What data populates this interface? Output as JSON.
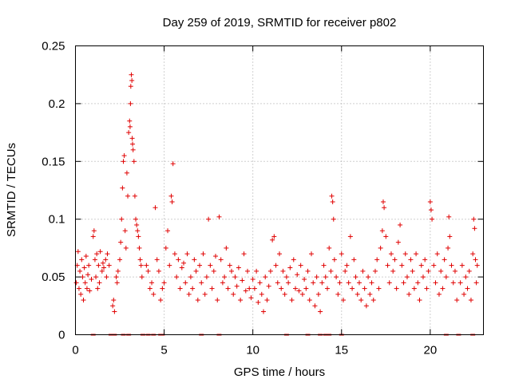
{
  "chart_data": {
    "type": "scatter",
    "title": "Day 259 of 2019, SRMTID for receiver p802",
    "xlabel": "GPS time / hours",
    "ylabel": "SRMTID / TECUs",
    "xlim": [
      0,
      23
    ],
    "ylim": [
      0,
      0.25
    ],
    "xticks": [
      0,
      5,
      10,
      15,
      20
    ],
    "yticks": [
      0,
      0.05,
      0.1,
      0.15,
      0.2,
      0.25
    ],
    "xtick_labels": [
      "0",
      "5",
      "10",
      "15",
      "20"
    ],
    "ytick_labels": [
      "0",
      "0.05",
      "0.1",
      "0.15",
      "0.2",
      "0.25"
    ],
    "grid": true,
    "marker": "plus",
    "color": "#e00000",
    "series": [
      {
        "name": "SRMTID",
        "points": [
          [
            0.05,
            0.045
          ],
          [
            0.1,
            0.06
          ],
          [
            0.15,
            0.072
          ],
          [
            0.2,
            0.04
          ],
          [
            0.25,
            0.055
          ],
          [
            0.3,
            0.035
          ],
          [
            0.35,
            0.065
          ],
          [
            0.4,
            0.05
          ],
          [
            0.45,
            0.03
          ],
          [
            0.5,
            0.058
          ],
          [
            0.55,
            0.045
          ],
          [
            0.6,
            0.068
          ],
          [
            0.65,
            0.04
          ],
          [
            0.7,
            0.052
          ],
          [
            0.75,
            0.06
          ],
          [
            0.8,
            0.038
          ],
          [
            0.9,
            0.048
          ],
          [
            1.0,
            0.085
          ],
          [
            1.05,
            0.09
          ],
          [
            1.1,
            0.065
          ],
          [
            1.15,
            0.05
          ],
          [
            1.2,
            0.07
          ],
          [
            1.25,
            0.04
          ],
          [
            1.3,
            0.06
          ],
          [
            1.35,
            0.045
          ],
          [
            1.4,
            0.072
          ],
          [
            1.5,
            0.055
          ],
          [
            1.55,
            0.062
          ],
          [
            1.6,
            0.058
          ],
          [
            1.7,
            0.065
          ],
          [
            1.75,
            0.05
          ],
          [
            1.8,
            0.07
          ],
          [
            1.9,
            0.06
          ],
          [
            2.1,
            0.025
          ],
          [
            2.15,
            0.03
          ],
          [
            2.2,
            0.02
          ],
          [
            2.3,
            0.05
          ],
          [
            2.35,
            0.045
          ],
          [
            2.4,
            0.055
          ],
          [
            2.5,
            0.065
          ],
          [
            2.55,
            0.08
          ],
          [
            2.6,
            0.1
          ],
          [
            2.65,
            0.127
          ],
          [
            2.7,
            0.15
          ],
          [
            2.75,
            0.155
          ],
          [
            2.8,
            0.09
          ],
          [
            2.85,
            0.075
          ],
          [
            2.9,
            0.14
          ],
          [
            2.95,
            0.12
          ],
          [
            3.0,
            0.175
          ],
          [
            3.05,
            0.185
          ],
          [
            3.08,
            0.18
          ],
          [
            3.1,
            0.2
          ],
          [
            3.12,
            0.215
          ],
          [
            3.15,
            0.225
          ],
          [
            3.18,
            0.22
          ],
          [
            3.2,
            0.17
          ],
          [
            3.22,
            0.165
          ],
          [
            3.25,
            0.16
          ],
          [
            3.3,
            0.15
          ],
          [
            3.35,
            0.12
          ],
          [
            3.4,
            0.1
          ],
          [
            3.45,
            0.095
          ],
          [
            3.5,
            0.09
          ],
          [
            3.55,
            0.085
          ],
          [
            3.6,
            0.075
          ],
          [
            3.65,
            0.065
          ],
          [
            3.7,
            0.06
          ],
          [
            3.75,
            0.05
          ],
          [
            4.0,
            0.06
          ],
          [
            4.1,
            0.055
          ],
          [
            4.2,
            0.04
          ],
          [
            4.3,
            0.045
          ],
          [
            4.4,
            0.035
          ],
          [
            4.5,
            0.11
          ],
          [
            4.6,
            0.065
          ],
          [
            4.7,
            0.055
          ],
          [
            4.8,
            0.03
          ],
          [
            4.9,
            0.04
          ],
          [
            5.0,
            0.045
          ],
          [
            5.1,
            0.075
          ],
          [
            5.2,
            0.09
          ],
          [
            5.3,
            0.06
          ],
          [
            5.4,
            0.12
          ],
          [
            5.45,
            0.115
          ],
          [
            5.5,
            0.148
          ],
          [
            5.6,
            0.07
          ],
          [
            5.7,
            0.05
          ],
          [
            5.8,
            0.065
          ],
          [
            5.9,
            0.04
          ],
          [
            6.0,
            0.058
          ],
          [
            6.1,
            0.062
          ],
          [
            6.2,
            0.045
          ],
          [
            6.3,
            0.07
          ],
          [
            6.4,
            0.035
          ],
          [
            6.5,
            0.05
          ],
          [
            6.6,
            0.04
          ],
          [
            6.7,
            0.065
          ],
          [
            6.8,
            0.055
          ],
          [
            6.9,
            0.03
          ],
          [
            7.0,
            0.06
          ],
          [
            7.1,
            0.045
          ],
          [
            7.2,
            0.07
          ],
          [
            7.3,
            0.035
          ],
          [
            7.4,
            0.05
          ],
          [
            7.5,
            0.1
          ],
          [
            7.6,
            0.06
          ],
          [
            7.7,
            0.04
          ],
          [
            7.8,
            0.055
          ],
          [
            7.9,
            0.068
          ],
          [
            8.0,
            0.03
          ],
          [
            8.1,
            0.102
          ],
          [
            8.2,
            0.065
          ],
          [
            8.3,
            0.045
          ],
          [
            8.4,
            0.05
          ],
          [
            8.5,
            0.075
          ],
          [
            8.6,
            0.04
          ],
          [
            8.7,
            0.06
          ],
          [
            8.8,
            0.055
          ],
          [
            8.9,
            0.035
          ],
          [
            9.0,
            0.05
          ],
          [
            9.1,
            0.042
          ],
          [
            9.2,
            0.058
          ],
          [
            9.3,
            0.03
          ],
          [
            9.4,
            0.047
          ],
          [
            9.5,
            0.07
          ],
          [
            9.6,
            0.038
          ],
          [
            9.7,
            0.055
          ],
          [
            9.8,
            0.04
          ],
          [
            9.9,
            0.032
          ],
          [
            10.0,
            0.048
          ],
          [
            10.1,
            0.04
          ],
          [
            10.2,
            0.055
          ],
          [
            10.3,
            0.028
          ],
          [
            10.4,
            0.045
          ],
          [
            10.5,
            0.035
          ],
          [
            10.6,
            0.02
          ],
          [
            10.7,
            0.05
          ],
          [
            10.8,
            0.03
          ],
          [
            10.9,
            0.042
          ],
          [
            11.0,
            0.055
          ],
          [
            11.1,
            0.082
          ],
          [
            11.2,
            0.085
          ],
          [
            11.3,
            0.06
          ],
          [
            11.4,
            0.045
          ],
          [
            11.5,
            0.07
          ],
          [
            11.6,
            0.04
          ],
          [
            11.7,
            0.055
          ],
          [
            11.8,
            0.035
          ],
          [
            11.9,
            0.05
          ],
          [
            12.0,
            0.045
          ],
          [
            12.1,
            0.058
          ],
          [
            12.2,
            0.03
          ],
          [
            12.3,
            0.065
          ],
          [
            12.4,
            0.04
          ],
          [
            12.5,
            0.052
          ],
          [
            12.6,
            0.038
          ],
          [
            12.7,
            0.06
          ],
          [
            12.8,
            0.035
          ],
          [
            12.9,
            0.048
          ],
          [
            13.0,
            0.04
          ],
          [
            13.1,
            0.055
          ],
          [
            13.2,
            0.03
          ],
          [
            13.3,
            0.07
          ],
          [
            13.4,
            0.045
          ],
          [
            13.5,
            0.025
          ],
          [
            13.6,
            0.05
          ],
          [
            13.7,
            0.035
          ],
          [
            13.8,
            0.02
          ],
          [
            13.9,
            0.045
          ],
          [
            14.0,
            0.06
          ],
          [
            14.1,
            0.05
          ],
          [
            14.2,
            0.04
          ],
          [
            14.3,
            0.075
          ],
          [
            14.4,
            0.055
          ],
          [
            14.45,
            0.12
          ],
          [
            14.5,
            0.115
          ],
          [
            14.55,
            0.1
          ],
          [
            14.6,
            0.065
          ],
          [
            14.7,
            0.05
          ],
          [
            14.8,
            0.035
          ],
          [
            14.9,
            0.045
          ],
          [
            15.0,
            0.07
          ],
          [
            15.1,
            0.03
          ],
          [
            15.2,
            0.055
          ],
          [
            15.3,
            0.06
          ],
          [
            15.4,
            0.045
          ],
          [
            15.5,
            0.085
          ],
          [
            15.6,
            0.04
          ],
          [
            15.7,
            0.065
          ],
          [
            15.8,
            0.05
          ],
          [
            15.9,
            0.035
          ],
          [
            16.0,
            0.045
          ],
          [
            16.1,
            0.03
          ],
          [
            16.2,
            0.055
          ],
          [
            16.3,
            0.04
          ],
          [
            16.4,
            0.025
          ],
          [
            16.5,
            0.05
          ],
          [
            16.6,
            0.035
          ],
          [
            16.7,
            0.045
          ],
          [
            16.8,
            0.03
          ],
          [
            16.9,
            0.055
          ],
          [
            17.0,
            0.065
          ],
          [
            17.1,
            0.04
          ],
          [
            17.2,
            0.075
          ],
          [
            17.3,
            0.09
          ],
          [
            17.35,
            0.115
          ],
          [
            17.4,
            0.11
          ],
          [
            17.5,
            0.085
          ],
          [
            17.6,
            0.06
          ],
          [
            17.7,
            0.045
          ],
          [
            17.8,
            0.07
          ],
          [
            17.9,
            0.055
          ],
          [
            18.0,
            0.065
          ],
          [
            18.1,
            0.04
          ],
          [
            18.2,
            0.08
          ],
          [
            18.3,
            0.095
          ],
          [
            18.4,
            0.06
          ],
          [
            18.5,
            0.045
          ],
          [
            18.6,
            0.07
          ],
          [
            18.7,
            0.05
          ],
          [
            18.8,
            0.035
          ],
          [
            18.9,
            0.065
          ],
          [
            19.0,
            0.055
          ],
          [
            19.1,
            0.04
          ],
          [
            19.2,
            0.07
          ],
          [
            19.3,
            0.045
          ],
          [
            19.4,
            0.03
          ],
          [
            19.5,
            0.06
          ],
          [
            19.6,
            0.05
          ],
          [
            19.7,
            0.065
          ],
          [
            19.8,
            0.04
          ],
          [
            19.9,
            0.055
          ],
          [
            20.0,
            0.115
          ],
          [
            20.05,
            0.108
          ],
          [
            20.1,
            0.1
          ],
          [
            20.2,
            0.06
          ],
          [
            20.3,
            0.045
          ],
          [
            20.4,
            0.07
          ],
          [
            20.5,
            0.035
          ],
          [
            20.6,
            0.055
          ],
          [
            20.7,
            0.04
          ],
          [
            20.8,
            0.065
          ],
          [
            20.9,
            0.05
          ],
          [
            21.0,
            0.075
          ],
          [
            21.05,
            0.102
          ],
          [
            21.1,
            0.085
          ],
          [
            21.2,
            0.06
          ],
          [
            21.3,
            0.045
          ],
          [
            21.4,
            0.055
          ],
          [
            21.5,
            0.03
          ],
          [
            21.7,
            0.045
          ],
          [
            21.8,
            0.06
          ],
          [
            21.9,
            0.035
          ],
          [
            22.0,
            0.05
          ],
          [
            22.1,
            0.04
          ],
          [
            22.2,
            0.055
          ],
          [
            22.3,
            0.03
          ],
          [
            22.4,
            0.07
          ],
          [
            22.45,
            0.1
          ],
          [
            22.5,
            0.092
          ],
          [
            22.55,
            0.065
          ],
          [
            22.6,
            0.045
          ],
          [
            22.65,
            0.06
          ]
        ]
      }
    ],
    "gap_markers_x": [
      1.0,
      2.0,
      2.1,
      2.2,
      2.7,
      3.0,
      3.8,
      4.1,
      4.4,
      4.8,
      4.9,
      7.1,
      8.1,
      11.9,
      13.1,
      13.8,
      14.1,
      14.3,
      15.0,
      20.9,
      21.6,
      22.4
    ]
  }
}
